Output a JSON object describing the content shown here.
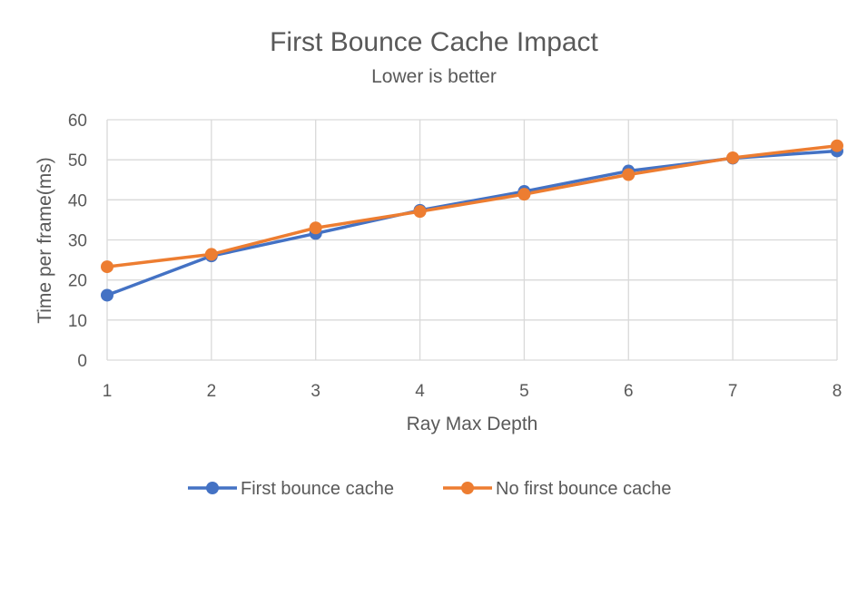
{
  "chart_data": {
    "type": "line",
    "title": "First Bounce Cache Impact",
    "subtitle": "Lower is better",
    "xlabel": "Ray Max Depth",
    "ylabel": "Time per frame(ms)",
    "x": [
      1,
      2,
      3,
      4,
      5,
      6,
      7,
      8
    ],
    "ylim": [
      0,
      60
    ],
    "yticks": [
      0,
      10,
      20,
      30,
      40,
      50,
      60
    ],
    "grid": true,
    "legend_position": "bottom",
    "series": [
      {
        "name": "First bounce cache",
        "color": "#4472c4",
        "values": [
          16.2,
          26.0,
          31.6,
          37.4,
          42.1,
          47.2,
          50.4,
          52.2
        ]
      },
      {
        "name": "No first bounce cache",
        "color": "#ed7d31",
        "values": [
          23.3,
          26.4,
          33.0,
          37.1,
          41.4,
          46.3,
          50.5,
          53.5
        ]
      }
    ]
  }
}
